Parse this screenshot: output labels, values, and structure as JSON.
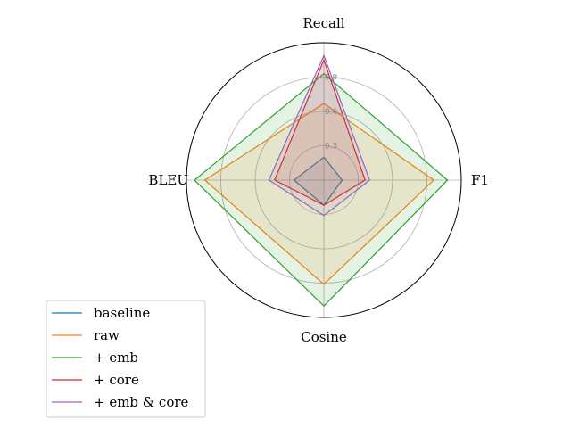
{
  "chart_data": {
    "type": "radar",
    "axes": [
      "Recall",
      "F1",
      "Cosine",
      "BLEU"
    ],
    "rlim": [
      0,
      1.2
    ],
    "rticks": [
      0.3,
      0.6,
      0.9
    ],
    "rtick_labels": [
      "0.3",
      "0.6",
      "0.9"
    ],
    "grid": true,
    "legend_position": "lower-left",
    "series": [
      {
        "name": "baseline",
        "color": "#1f77b4",
        "values": [
          0.2,
          0.16,
          0.22,
          0.26
        ]
      },
      {
        "name": "raw",
        "color": "#ff7f0e",
        "values": [
          0.67,
          0.96,
          0.91,
          1.04
        ]
      },
      {
        "name": "+ emb",
        "color": "#2ca02c",
        "values": [
          0.93,
          1.08,
          1.1,
          1.13
        ]
      },
      {
        "name": "+ core",
        "color": "#d62728",
        "values": [
          1.05,
          0.36,
          0.22,
          0.43
        ]
      },
      {
        "name": "+ emb & core",
        "color": "#9467bd",
        "values": [
          1.09,
          0.4,
          0.31,
          0.48
        ]
      }
    ]
  }
}
